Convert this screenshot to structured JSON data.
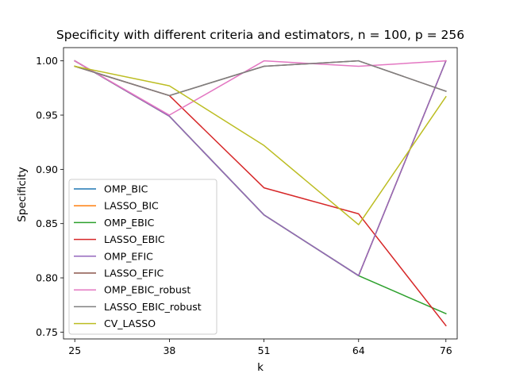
{
  "chart_data": {
    "type": "line",
    "title": "Specificity with different criteria and estimators, n = 100, p = 256",
    "xlabel": "k",
    "ylabel": "Specificity",
    "x": [
      25,
      38,
      51,
      64,
      76
    ],
    "x_tick_labels": [
      "25",
      "38",
      "51",
      "64",
      "76"
    ],
    "y_ticks": [
      0.75,
      0.8,
      0.85,
      0.9,
      0.95,
      1.0
    ],
    "y_tick_labels": [
      "0.75",
      "0.80",
      "0.85",
      "0.90",
      "0.95",
      "1.00"
    ],
    "xlim": [
      23.45,
      77.55
    ],
    "ylim": [
      0.7437,
      1.0122
    ],
    "grid": false,
    "legend_position": "lower-left",
    "series": [
      {
        "name": "OMP_BIC",
        "color": "#1f77b4",
        "values": [
          1.0,
          0.949,
          0.858,
          0.802,
          1.0
        ]
      },
      {
        "name": "LASSO_BIC",
        "color": "#ff7f0e",
        "values": [
          1.0,
          0.949,
          0.858,
          0.802,
          1.0
        ]
      },
      {
        "name": "OMP_EBIC",
        "color": "#2ca02c",
        "values": [
          1.0,
          0.949,
          0.858,
          0.802,
          0.767
        ]
      },
      {
        "name": "LASSO_EBIC",
        "color": "#d62728",
        "values": [
          0.995,
          0.968,
          0.883,
          0.859,
          0.756
        ]
      },
      {
        "name": "OMP_EFIC",
        "color": "#9467bd",
        "values": [
          1.0,
          0.949,
          0.858,
          0.802,
          1.0
        ]
      },
      {
        "name": "LASSO_EFIC",
        "color": "#8c564b",
        "values": [
          0.995,
          0.968,
          0.995,
          1.0,
          0.972
        ]
      },
      {
        "name": "OMP_EBIC_robust",
        "color": "#e377c2",
        "values": [
          1.0,
          0.95,
          1.0,
          0.995,
          1.0
        ]
      },
      {
        "name": "LASSO_EBIC_robust",
        "color": "#7f7f7f",
        "values": [
          0.995,
          0.968,
          0.995,
          1.0,
          0.972
        ]
      },
      {
        "name": "CV_LASSO",
        "color": "#bcbd22",
        "values": [
          0.995,
          0.977,
          0.922,
          0.849,
          0.967
        ]
      }
    ]
  }
}
